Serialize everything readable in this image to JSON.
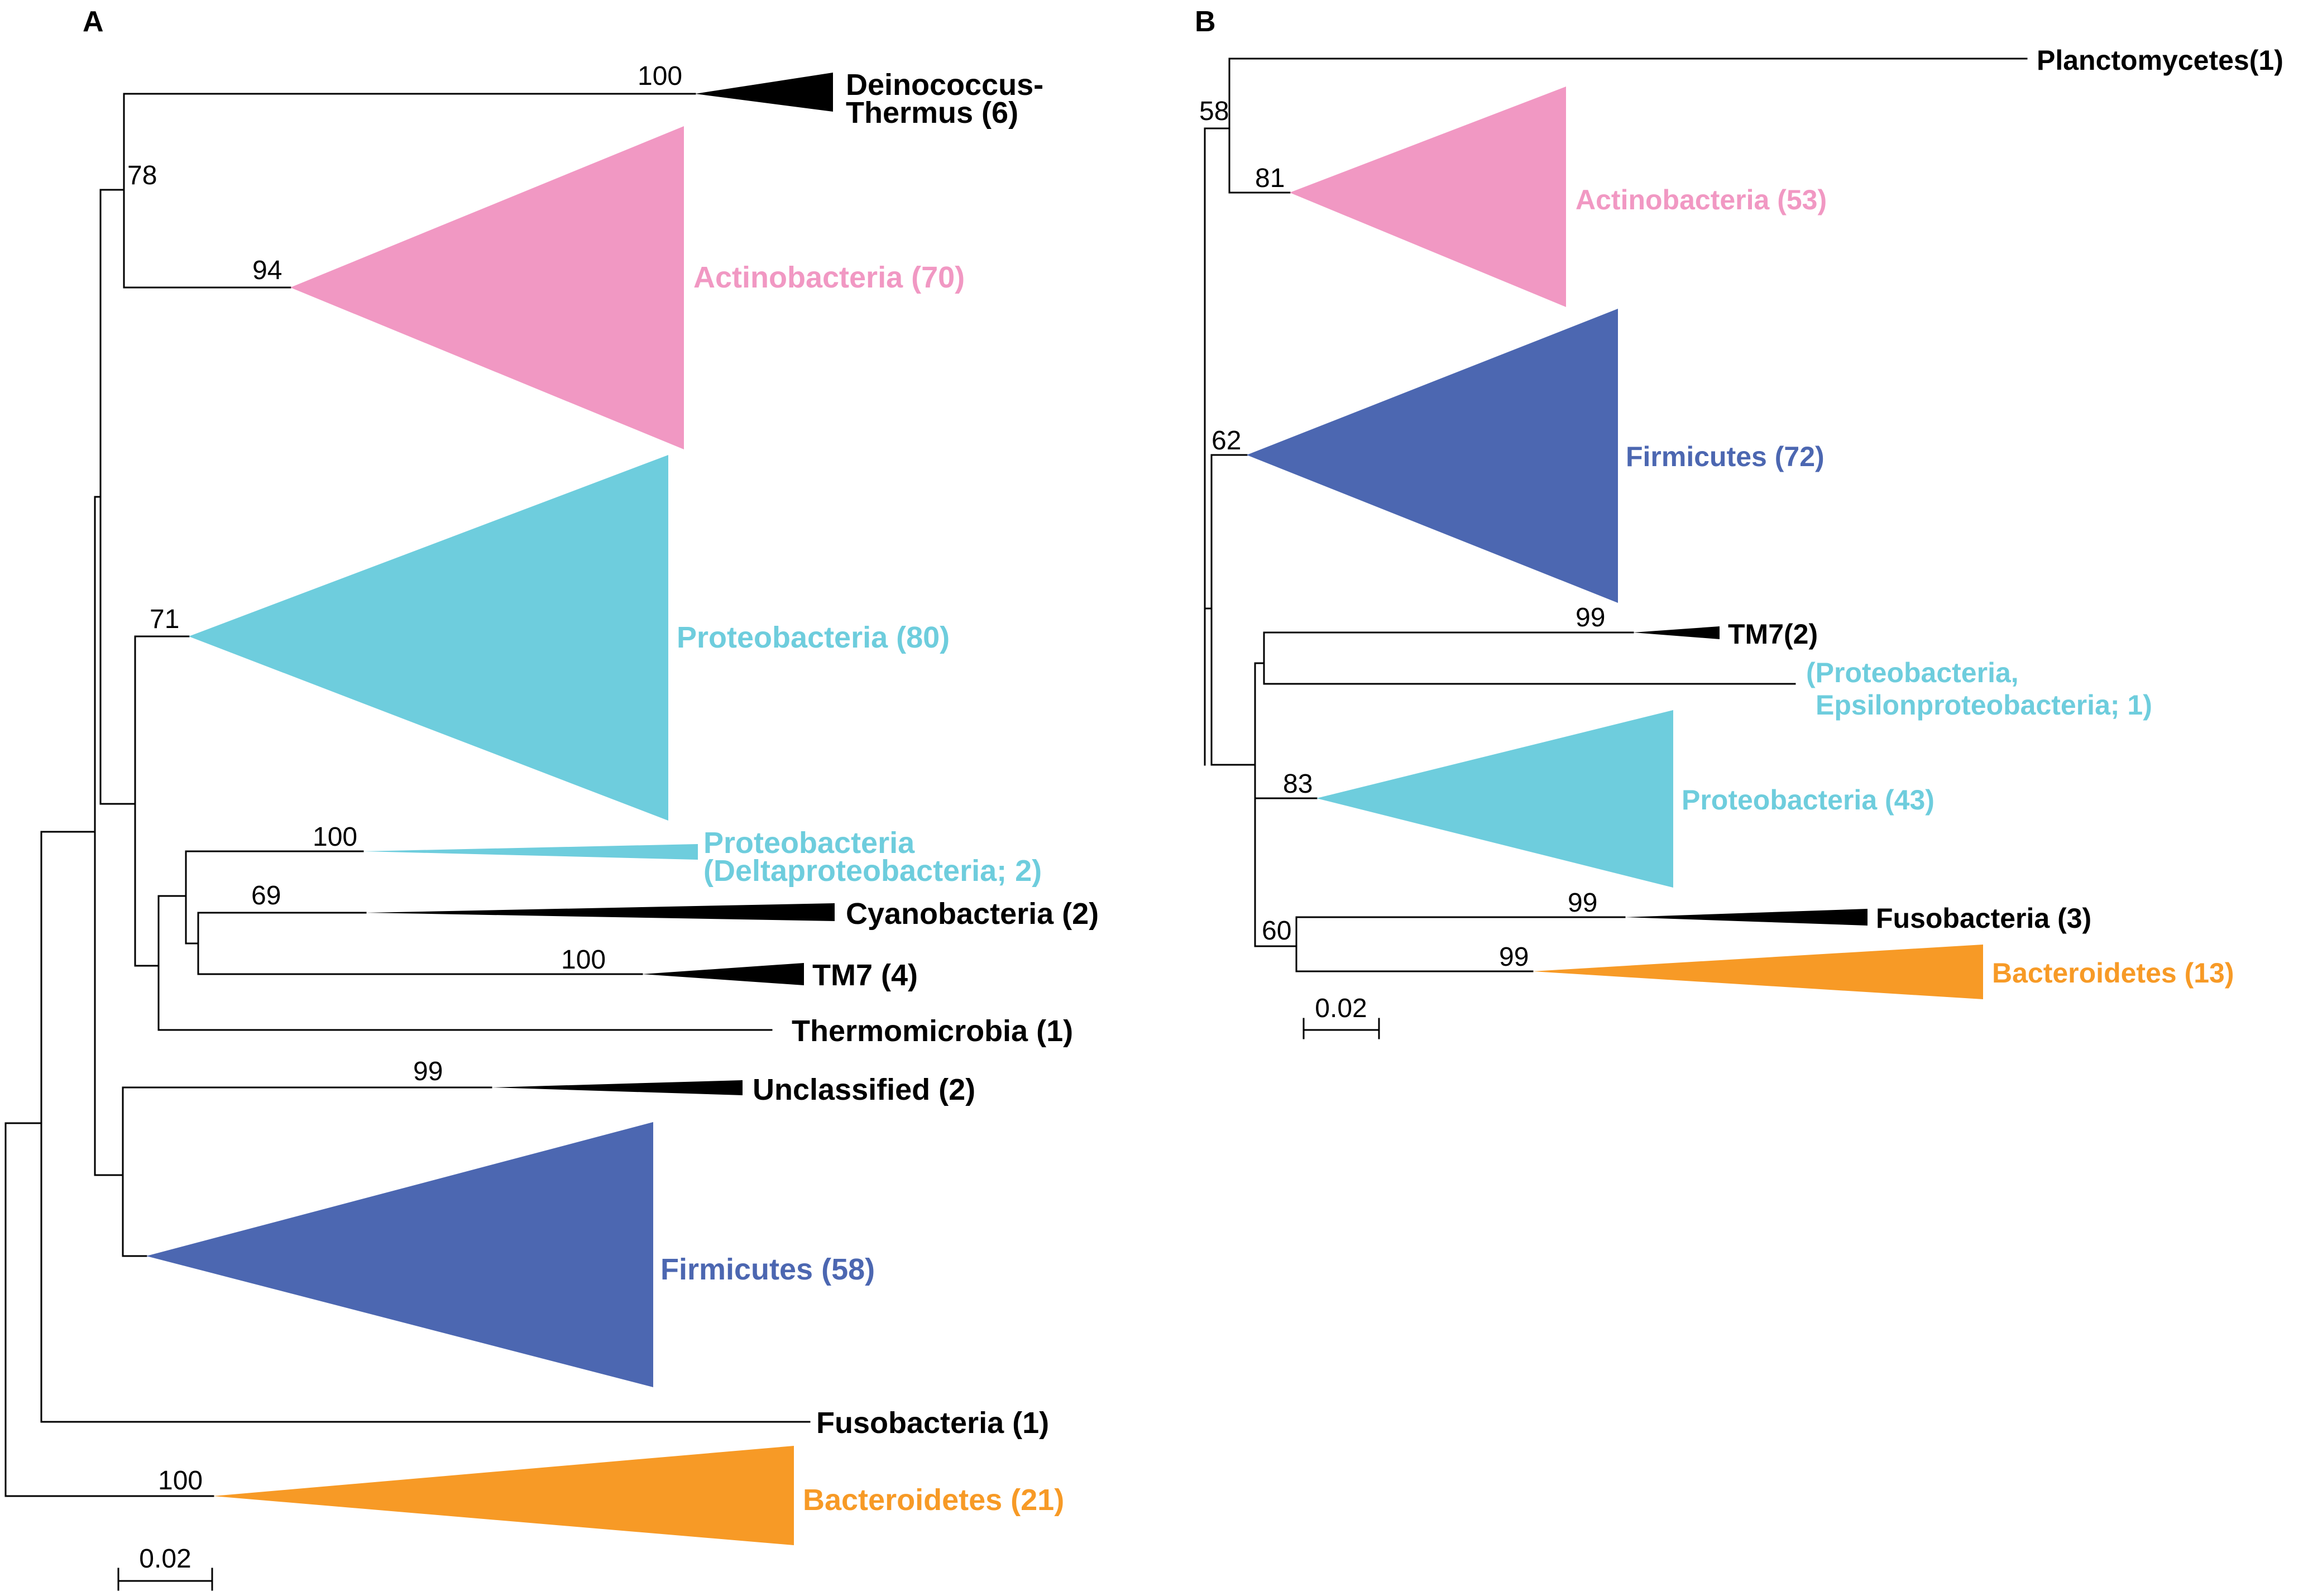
{
  "colors": {
    "actinobacteria": "#f198c3",
    "proteobacteria": "#6ecddd",
    "firmicutes": "#4c67b1",
    "bacteroidetes": "#f79a26",
    "black": "#000000"
  },
  "panel_a": {
    "letter": "A",
    "scale_label": "0.02",
    "bootstrap": {
      "n100_dein": "100",
      "n78": "78",
      "n94": "94",
      "n71": "71",
      "n100_delta": "100",
      "n69": "69",
      "n100_tm7": "100",
      "n99_uncl": "99",
      "n100_bact": "100"
    },
    "taxa": {
      "deinococcus_line1": "Deinococcus-",
      "deinococcus_line2": "Thermus (6)",
      "actinobacteria": "Actinobacteria (70)",
      "proteobacteria": "Proteobacteria (80)",
      "delta_line1": "Proteobacteria",
      "delta_line2": "(Deltaproteobacteria; 2)",
      "cyanobacteria": "Cyanobacteria (2)",
      "tm7": "TM7 (4)",
      "thermomicrobia": "Thermomicrobia (1)",
      "unclassified": "Unclassified (2)",
      "firmicutes": "Firmicutes (58)",
      "fusobacteria": "Fusobacteria (1)",
      "bacteroidetes": "Bacteroidetes (21)"
    }
  },
  "panel_b": {
    "letter": "B",
    "scale_label": "0.02",
    "bootstrap": {
      "n58": "58",
      "n81": "81",
      "n62": "62",
      "n99_tm7": "99",
      "n83": "83",
      "n99_fuso": "99",
      "n60": "60",
      "n99_bact": "99"
    },
    "taxa": {
      "planctomycetes": "Planctomycetes(1)",
      "actinobacteria": "Actinobacteria (53)",
      "firmicutes": "Firmicutes (72)",
      "tm7": "TM7(2)",
      "epsilon_line1": "(Proteobacteria,",
      "epsilon_line2": "Epsilonproteobacteria; 1)",
      "proteobacteria": "Proteobacteria (43)",
      "fusobacteria": "Fusobacteria (3)",
      "bacteroidetes": "Bacteroidetes (13)"
    }
  }
}
